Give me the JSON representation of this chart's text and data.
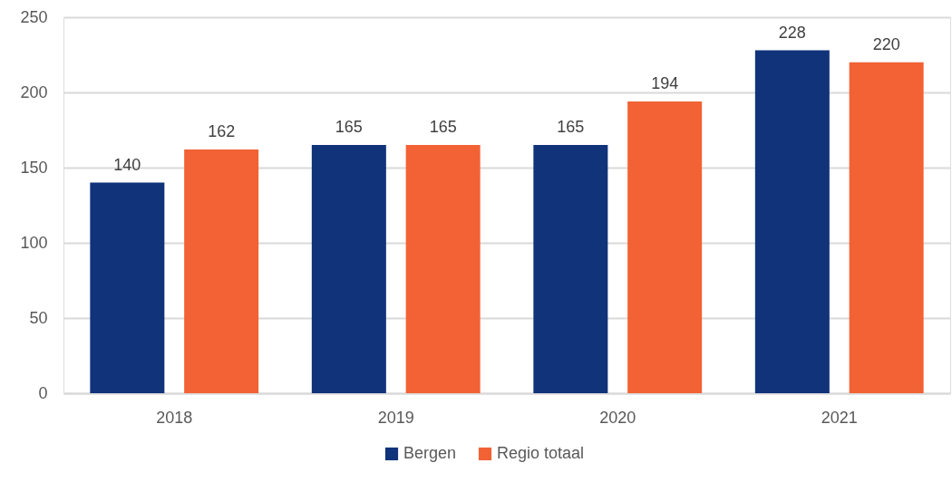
{
  "chart_data": {
    "type": "bar",
    "categories": [
      "2018",
      "2019",
      "2020",
      "2021"
    ],
    "series": [
      {
        "name": "Bergen",
        "color": "#10337a",
        "values": [
          140,
          165,
          165,
          228
        ]
      },
      {
        "name": "Regio totaal",
        "color": "#f26235",
        "values": [
          162,
          165,
          194,
          220
        ]
      }
    ],
    "ylim": [
      0,
      250
    ],
    "yticks": [
      0,
      50,
      100,
      150,
      200,
      250
    ],
    "grid": "y",
    "legend": "bottom",
    "data_labels": true
  }
}
